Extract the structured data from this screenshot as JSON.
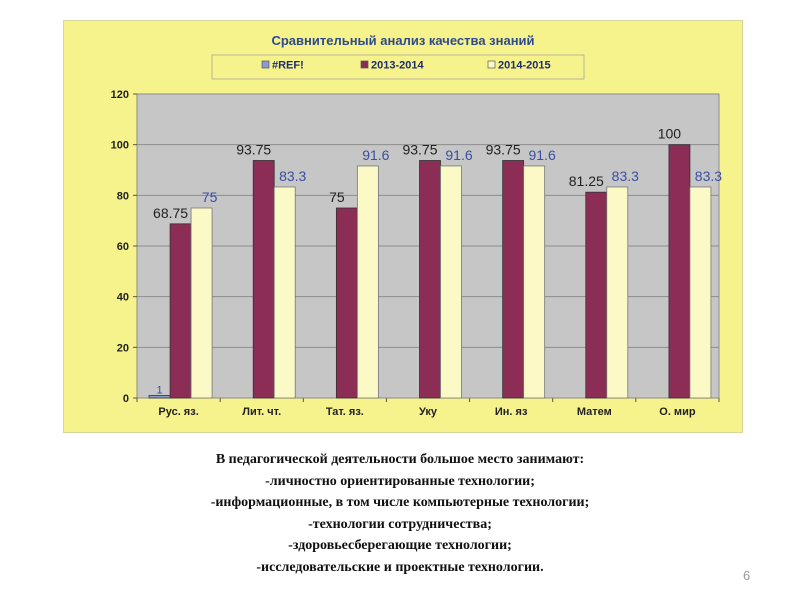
{
  "chart_data": {
    "type": "bar",
    "title": "Сравнительный анализ качества знаний",
    "categories": [
      "Рус. яз.",
      "Лит. чт.",
      "Тат. яз.",
      "Уку",
      "Ин. яз",
      "Матем",
      "О. мир"
    ],
    "series": [
      {
        "name": "#REF!",
        "values": [
          1,
          null,
          null,
          null,
          null,
          null,
          null
        ],
        "labels": [
          "1",
          "",
          "",
          "",
          "",
          "",
          ""
        ],
        "color": "#8a9ad6"
      },
      {
        "name": "2013-2014",
        "values": [
          68.75,
          93.75,
          75,
          93.75,
          93.75,
          81.25,
          100
        ],
        "labels": [
          "68.75",
          "93.75",
          "75",
          "93.75",
          "93.75",
          "81.25",
          "100"
        ],
        "color": "#8b2d55"
      },
      {
        "name": "2014-2015",
        "values": [
          75,
          83.3,
          91.6,
          91.6,
          91.6,
          83.3,
          83.3
        ],
        "labels": [
          "75",
          "83.3",
          "91.6",
          "91.6",
          "91.6",
          "83.3",
          "83.3"
        ],
        "color": "#fbf9c6"
      }
    ],
    "ylim": [
      0,
      120
    ],
    "yticks": [
      "0",
      "20",
      "40",
      "60",
      "80",
      "100",
      "120"
    ],
    "grid": true,
    "legend": "top",
    "colors": {
      "frame": "#f6f38c",
      "plot": "#c6c6c6",
      "grid": "#8c8c8c",
      "title": "#2e4a8e",
      "label_2014": "#3a4fa3",
      "label_2013": "#222222"
    }
  },
  "text": {
    "lines": [
      "В педагогической деятельности большое место занимают:",
      "-личностно ориентированные технологии;",
      "-информационные, в том числе компьютерные технологии;",
      "-технологии сотрудничества;",
      "-здоровьесберегающие технологии;",
      "-исследовательские и проектные технологии."
    ]
  },
  "page_number": "6"
}
